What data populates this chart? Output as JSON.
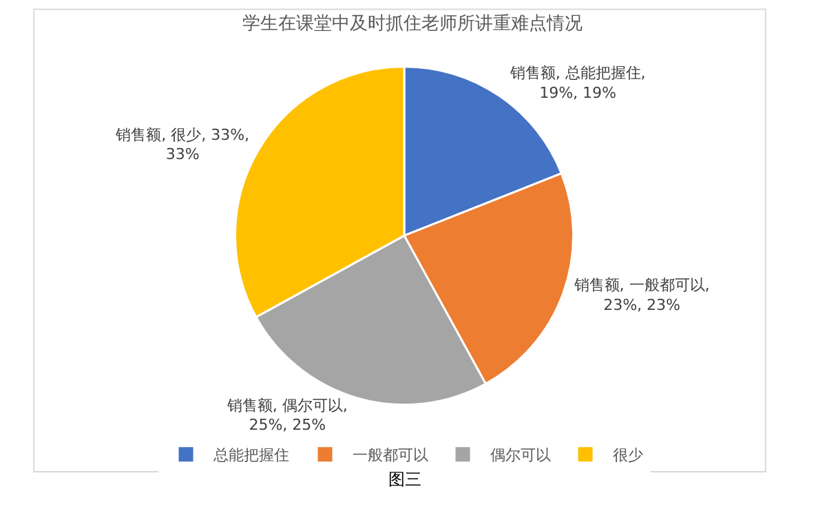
{
  "chart_data": {
    "type": "pie",
    "title": "学生在课堂中及时抓住老师所讲重难点情况",
    "categories": [
      "总能把握住",
      "一般都可以",
      "偶尔可以",
      "很少"
    ],
    "values": [
      19,
      23,
      25,
      33
    ],
    "colors": [
      "#4472c4",
      "#ed7d31",
      "#a5a5a5",
      "#ffc000"
    ],
    "value_labels": [
      "销售额, 总能把握住, 19%, 19%",
      "销售额, 一般都可以, 23%, 23%",
      "销售额, 偶尔可以, 25%, 25%",
      "销售额, 很少, 33%, 33%"
    ],
    "legend": "bottom",
    "annotations": [
      "图三"
    ]
  }
}
